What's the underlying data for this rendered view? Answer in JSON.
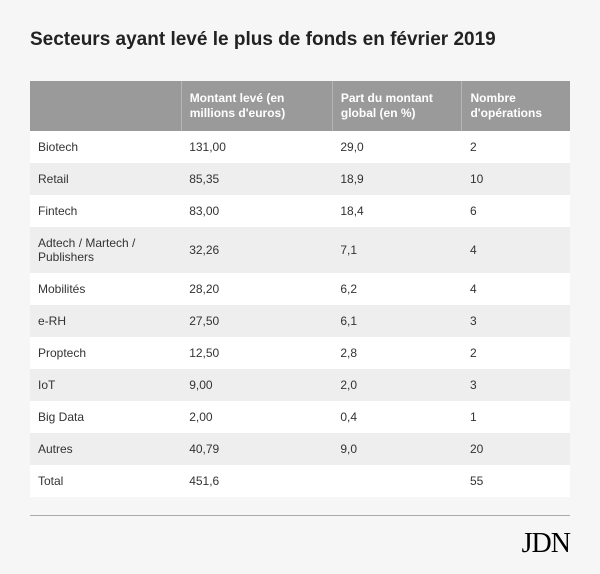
{
  "title": "Secteurs ayant levé le plus de fonds en février 2019",
  "table": {
    "type": "table",
    "columns": [
      {
        "label": "",
        "width": "28%"
      },
      {
        "label": "Montant levé (en millions  d'euros)",
        "width": "28%"
      },
      {
        "label": "Part du montant global (en %)",
        "width": "24%"
      },
      {
        "label": "Nombre d'opérations",
        "width": "20%"
      }
    ],
    "header_bg": "#9a9a9a",
    "header_text_color": "#ffffff",
    "row_odd_bg": "#ffffff",
    "row_even_bg": "#eeeeee",
    "text_color": "#333333",
    "font_size": 12,
    "rows": [
      [
        "Biotech",
        "131,00",
        "29,0",
        "2"
      ],
      [
        "Retail",
        "85,35",
        "18,9",
        "10"
      ],
      [
        "Fintech",
        "83,00",
        "18,4",
        "6"
      ],
      [
        "Adtech / Martech / Publishers",
        "32,26",
        "7,1",
        "4"
      ],
      [
        "Mobilités",
        "28,20",
        "6,2",
        "4"
      ],
      [
        "e-RH",
        "27,50",
        "6,1",
        "3"
      ],
      [
        "Proptech",
        "12,50",
        "2,8",
        "2"
      ],
      [
        "IoT",
        "9,00",
        "2,0",
        "3"
      ],
      [
        "Big Data",
        "2,00",
        "0,4",
        "1"
      ],
      [
        "Autres",
        "40,79",
        "9,0",
        "20"
      ],
      [
        "Total",
        "451,6",
        "",
        "55"
      ]
    ]
  },
  "logo_text": "JDN",
  "background_color": "#f6f6f6",
  "rule_color": "#aaaaaa"
}
